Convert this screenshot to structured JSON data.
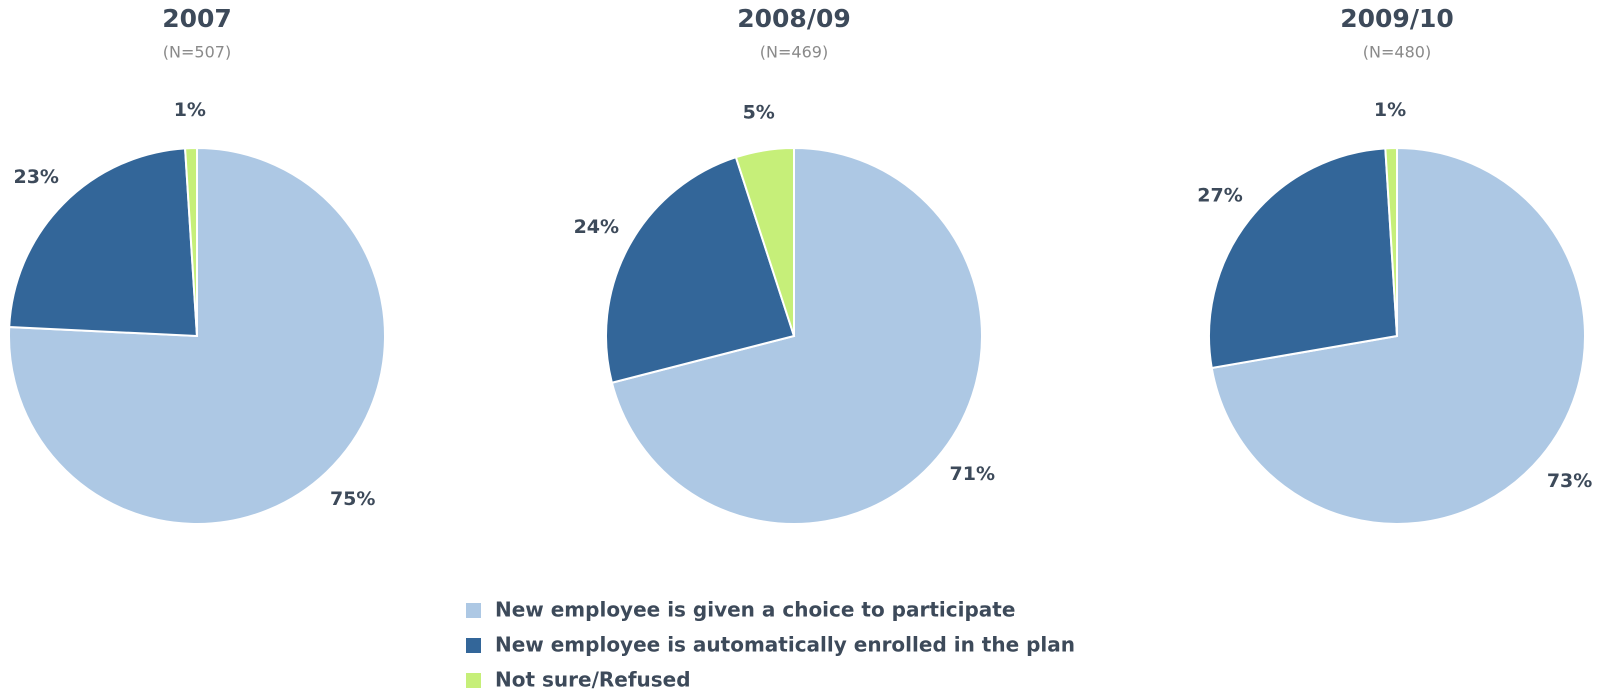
{
  "chart_data": [
    {
      "type": "pie",
      "title": "2007",
      "subtitle": "(N=507)",
      "categories": [
        "New employee is given a choice to participate",
        "New employee is automatically enrolled in the plan",
        "Not sure/Refused"
      ],
      "values": [
        75,
        23,
        1
      ],
      "value_labels": [
        "75%",
        "23%",
        "1%"
      ],
      "colors": [
        "#adc8e4",
        "#336699",
        "#c6ef79"
      ]
    },
    {
      "type": "pie",
      "title": "2008/09",
      "subtitle": "(N=469)",
      "categories": [
        "New employee is given a choice to participate",
        "New employee is automatically enrolled in the plan",
        "Not sure/Refused"
      ],
      "values": [
        71,
        24,
        5
      ],
      "value_labels": [
        "71%",
        "24%",
        "5%"
      ],
      "colors": [
        "#adc8e4",
        "#336699",
        "#c6ef79"
      ]
    },
    {
      "type": "pie",
      "title": "2009/10",
      "subtitle": "(N=480)",
      "categories": [
        "New employee is given a choice to participate",
        "New employee is automatically enrolled in the plan",
        "Not sure/Refused"
      ],
      "values": [
        73,
        27,
        1
      ],
      "value_labels": [
        "73%",
        "27%",
        "1%"
      ],
      "colors": [
        "#adc8e4",
        "#336699",
        "#c6ef79"
      ]
    }
  ]
}
